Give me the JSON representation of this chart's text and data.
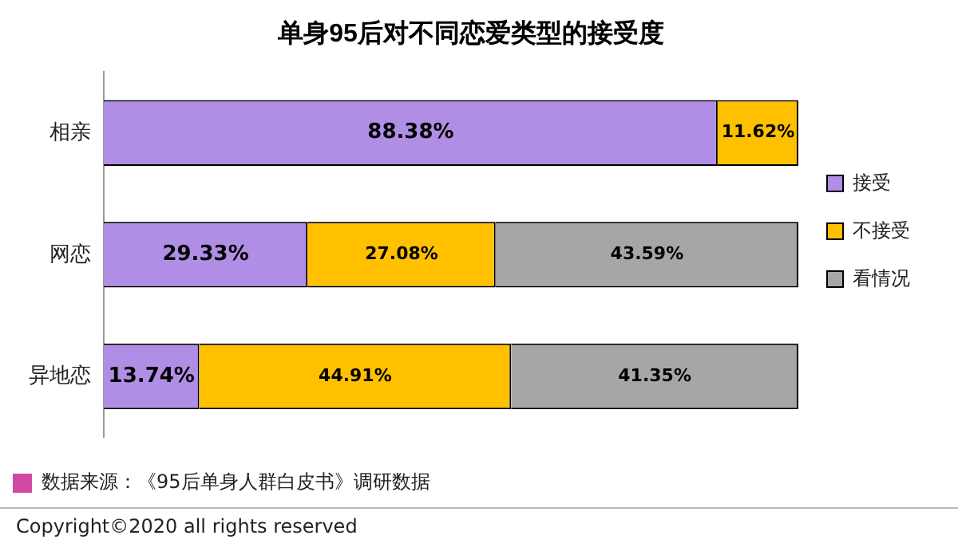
{
  "chart_data": {
    "type": "bar",
    "orientation": "horizontal",
    "stacked": true,
    "title": "单身95后对不同恋爱类型的接受度",
    "categories": [
      "相亲",
      "网恋",
      "异地恋"
    ],
    "series": [
      {
        "name": "接受",
        "color": "#b18ee6",
        "values": [
          88.38,
          29.33,
          13.74
        ],
        "value_labels": [
          "88.38%",
          "29.33%",
          "13.74%"
        ]
      },
      {
        "name": "不接受",
        "color": "#ffc000",
        "values": [
          11.62,
          27.08,
          44.91
        ],
        "value_labels": [
          "11.62%",
          "27.08%",
          "44.91%"
        ]
      },
      {
        "name": "看情况",
        "color": "#a6a6a6",
        "values": [
          0,
          43.59,
          41.35
        ],
        "value_labels": [
          null,
          "43.59%",
          "41.35%"
        ]
      }
    ],
    "legend": "right",
    "tick_labels": "y",
    "annotations": [
      "数据来源：《95后单身人群白皮书》调研数据",
      "Copyright©2020 all rights reserved"
    ]
  }
}
